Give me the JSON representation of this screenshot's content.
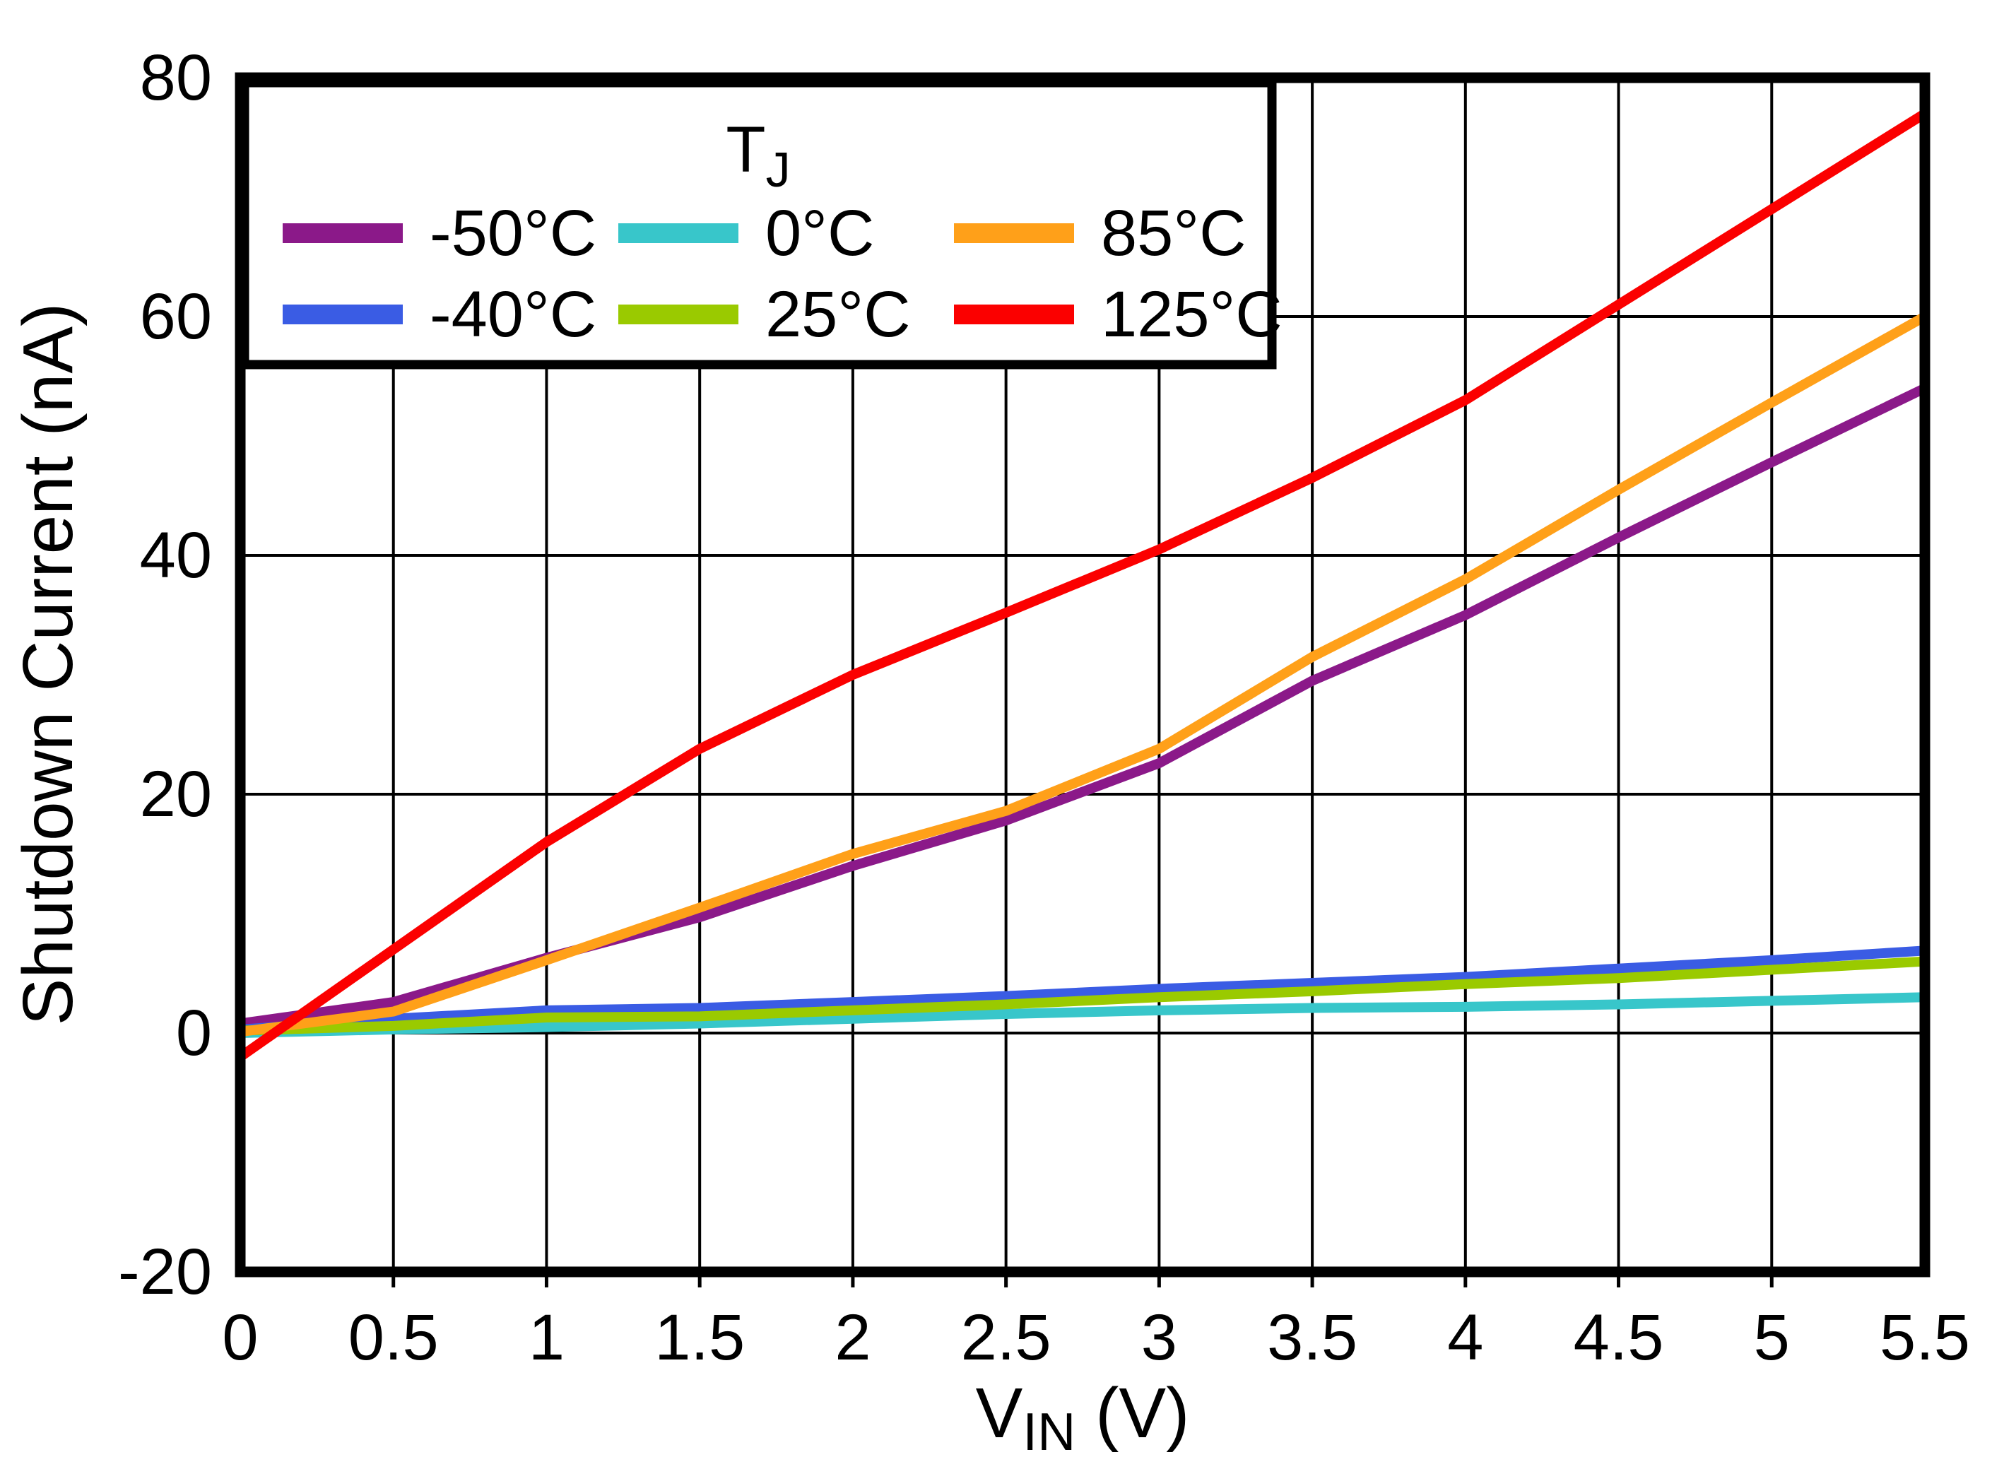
{
  "chart_data": {
    "type": "line",
    "title": "",
    "xlabel": {
      "main": "V",
      "sub": "IN",
      "rest": " (V)"
    },
    "ylabel": "Shutdown Current (nA)",
    "xlim": [
      0,
      5.5
    ],
    "ylim": [
      -20,
      80
    ],
    "grid": true,
    "x_tick_labels": [
      "0",
      "0.5",
      "1",
      "1.5",
      "2",
      "2.5",
      "3",
      "3.5",
      "4",
      "4.5",
      "5",
      "5.5"
    ],
    "x_tick_values": [
      0,
      0.5,
      1,
      1.5,
      2,
      2.5,
      3,
      3.5,
      4,
      4.5,
      5,
      5.5
    ],
    "y_tick_labels": [
      "-20",
      "0",
      "20",
      "40",
      "60",
      "80"
    ],
    "y_tick_values": [
      -20,
      0,
      20,
      40,
      60,
      80
    ],
    "x": [
      0,
      0.5,
      1,
      1.5,
      2,
      2.5,
      3,
      3.5,
      4,
      4.5,
      5,
      5.5
    ],
    "series": [
      {
        "name": "-50°C",
        "color": "#8B1989",
        "values": [
          0.8,
          2.6,
          6.3,
          9.7,
          14.0,
          17.8,
          22.6,
          29.5,
          35.0,
          41.5,
          47.8,
          54.0
        ]
      },
      {
        "name": "-40°C",
        "color": "#3A5CE4",
        "values": [
          0.3,
          1.2,
          1.9,
          2.1,
          2.6,
          3.1,
          3.7,
          4.2,
          4.7,
          5.4,
          6.1,
          6.9
        ]
      },
      {
        "name": "0°C",
        "color": "#38C6CA",
        "values": [
          0.0,
          0.3,
          0.5,
          0.8,
          1.2,
          1.6,
          1.9,
          2.1,
          2.2,
          2.4,
          2.7,
          3.0
        ]
      },
      {
        "name": "25°C",
        "color": "#9ACA00",
        "values": [
          0.2,
          0.6,
          1.3,
          1.4,
          1.9,
          2.4,
          3.0,
          3.5,
          4.1,
          4.6,
          5.3,
          6.0
        ]
      },
      {
        "name": "85°C",
        "color": "#FFA019",
        "values": [
          0.1,
          1.8,
          6.1,
          10.5,
          15.0,
          18.6,
          23.8,
          31.5,
          38.0,
          45.5,
          52.8,
          60.0
        ]
      },
      {
        "name": "125°C",
        "color": "#FB0000",
        "values": [
          -2.0,
          7.0,
          16.0,
          23.8,
          30.0,
          35.2,
          40.5,
          46.5,
          53.0,
          61.0,
          69.0,
          77.0
        ]
      }
    ],
    "legend": {
      "title": {
        "main": "T",
        "sub": "J"
      },
      "position": "top-left",
      "rows": [
        [
          "-50°C",
          "0°C",
          "85°C"
        ],
        [
          "-40°C",
          "25°C",
          "125°C"
        ]
      ]
    }
  }
}
